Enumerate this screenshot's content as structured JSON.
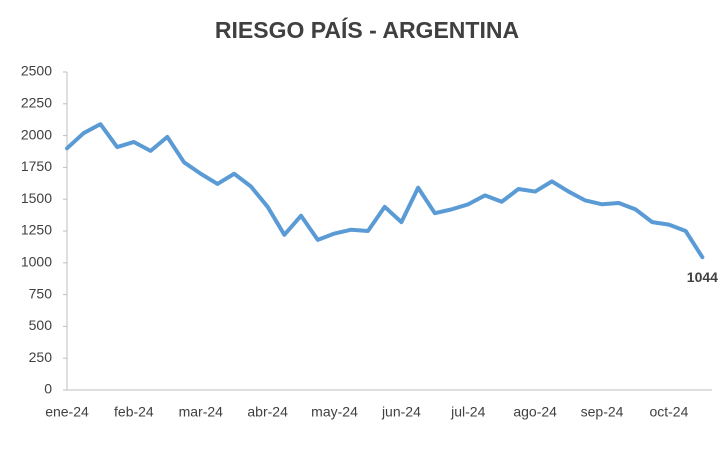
{
  "chart_data": {
    "type": "line",
    "title": "RIESGO PAÍS - ARGENTINA",
    "categories": [
      "ene-24",
      null,
      null,
      null,
      "feb-24",
      null,
      null,
      null,
      "mar-24",
      null,
      null,
      null,
      "abr-24",
      null,
      null,
      null,
      "may-24",
      null,
      null,
      null,
      "jun-24",
      null,
      null,
      null,
      "jul-24",
      null,
      null,
      null,
      "ago-24",
      null,
      null,
      null,
      "sep-24",
      null,
      null,
      null,
      "oct-24",
      null,
      null
    ],
    "values": [
      1900,
      2020,
      2090,
      1910,
      1950,
      1880,
      1990,
      1790,
      1700,
      1620,
      1700,
      1600,
      1440,
      1220,
      1370,
      1180,
      1230,
      1260,
      1250,
      1440,
      1320,
      1590,
      1390,
      1420,
      1460,
      1530,
      1480,
      1580,
      1560,
      1640,
      1560,
      1490,
      1460,
      1470,
      1420,
      1320,
      1300,
      1250,
      1044
    ],
    "color": "#5b9bd5",
    "ylim": [
      0,
      2500
    ],
    "yticks": [
      0,
      250,
      500,
      750,
      1000,
      1250,
      1500,
      1750,
      2000,
      2250,
      2500
    ],
    "grid": false
  }
}
